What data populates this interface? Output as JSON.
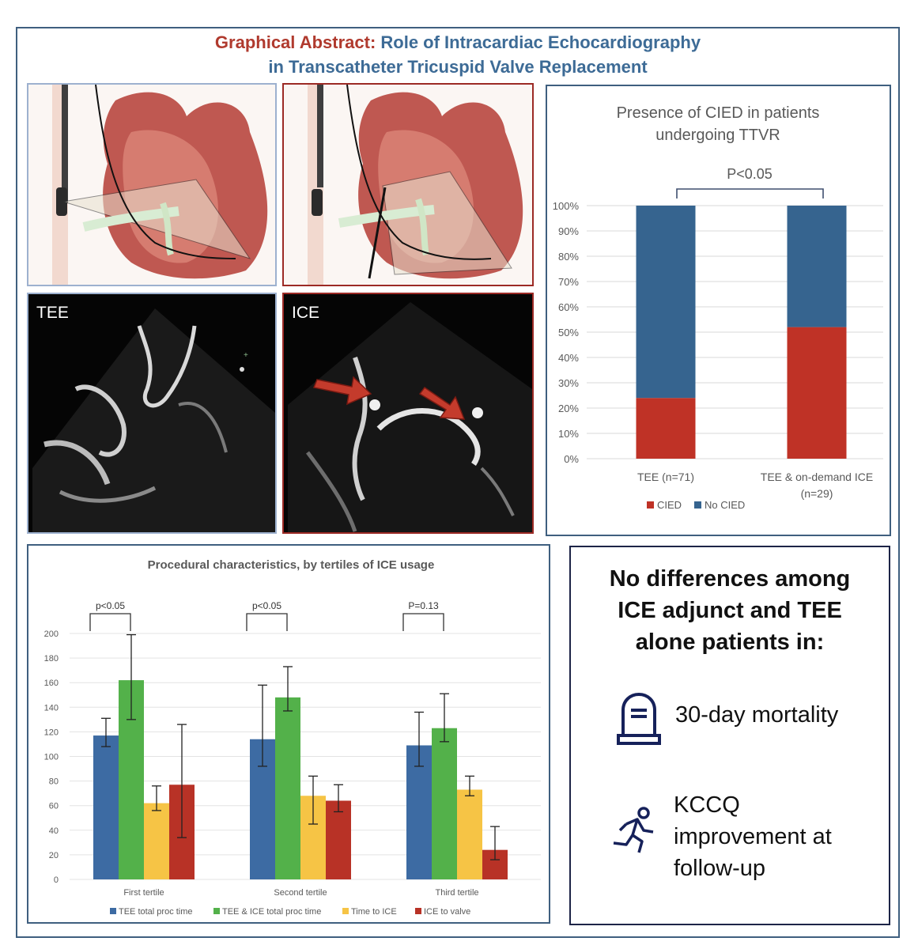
{
  "title": {
    "prefix": "Graphical Abstract:",
    "line1_rest": " Role of Intracardiac Echocardiography",
    "line2": "in Transcatheter Tricuspid Valve Replacement"
  },
  "colors": {
    "title_red": "#b03a2e",
    "title_blue": "#3d6b96",
    "tee_blue": "#3d6ba3",
    "ice_green": "#53b14a",
    "time_yellow": "#f6c445",
    "valve_red": "#b83226",
    "cied_red": "#bf3226",
    "nocied_blue": "#36648f"
  },
  "images": {
    "tee_label": "TEE",
    "ice_label": "ICE"
  },
  "cied_chart": {
    "title_line1": "Presence of CIED in patients",
    "title_line2": "undergoing TTVR",
    "pvalue": "P<0.05",
    "yticks": [
      "0%",
      "10%",
      "20%",
      "30%",
      "40%",
      "50%",
      "60%",
      "70%",
      "80%",
      "90%",
      "100%"
    ],
    "categories": [
      {
        "line1": "TEE (n=71)",
        "line2": ""
      },
      {
        "line1": "TEE & on-demand ICE",
        "line2": "(n=29)"
      }
    ],
    "legend": [
      "CIED",
      "No CIED"
    ]
  },
  "proc_chart": {
    "title": "Procedural characteristics, by tertiles of ICE usage",
    "pvalues": [
      "p<0.05",
      "p<0.05",
      "P=0.13"
    ],
    "yticks": [
      "0",
      "20",
      "40",
      "60",
      "80",
      "100",
      "120",
      "140",
      "160",
      "180",
      "200"
    ],
    "legend": [
      "TEE total proc time",
      "TEE & ICE total proc time",
      "Time to ICE",
      "ICE to valve"
    ]
  },
  "chart_data": [
    {
      "type": "bar",
      "stacked": true,
      "title": "Presence of CIED in patients undergoing TTVR",
      "categories": [
        "TEE (n=71)",
        "TEE & on-demand ICE (n=29)"
      ],
      "series": [
        {
          "name": "CIED",
          "values": [
            24,
            52
          ]
        },
        {
          "name": "No CIED",
          "values": [
            76,
            48
          ]
        }
      ],
      "ylim": [
        0,
        100
      ],
      "yunit": "%",
      "annotation": "P<0.05",
      "legend": "bottom-left"
    },
    {
      "type": "bar",
      "title": "Procedural characteristics, by tertiles of ICE usage",
      "categories": [
        "First tertile",
        "Second tertile",
        "Third tertile"
      ],
      "series": [
        {
          "name": "TEE total proc time",
          "values": [
            117,
            114,
            109
          ],
          "err_low": [
            108,
            92,
            92
          ],
          "err_high": [
            131,
            158,
            136
          ]
        },
        {
          "name": "TEE & ICE total proc time",
          "values": [
            162,
            148,
            123
          ],
          "err_low": [
            130,
            137,
            112
          ],
          "err_high": [
            199,
            173,
            151
          ]
        },
        {
          "name": "Time to ICE",
          "values": [
            62,
            68,
            73
          ],
          "err_low": [
            56,
            45,
            68
          ],
          "err_high": [
            76,
            84,
            84
          ]
        },
        {
          "name": "ICE to valve",
          "values": [
            77,
            64,
            24
          ],
          "err_low": [
            34,
            55,
            16
          ],
          "err_high": [
            126,
            77,
            43
          ]
        }
      ],
      "ylim": [
        0,
        200
      ],
      "annotations": [
        "p<0.05",
        "p<0.05",
        "P=0.13"
      ],
      "legend": "bottom"
    }
  ],
  "summary": {
    "heading_line1": "No differences among",
    "heading_line2": "ICE adjunct and TEE",
    "heading_line3": "alone patients in:",
    "item1": "30-day mortality",
    "item2_line1": "KCCQ",
    "item2_line2": "improvement at",
    "item2_line3": "follow-up",
    "icon1": "tombstone-icon",
    "icon2": "running-person-icon"
  }
}
